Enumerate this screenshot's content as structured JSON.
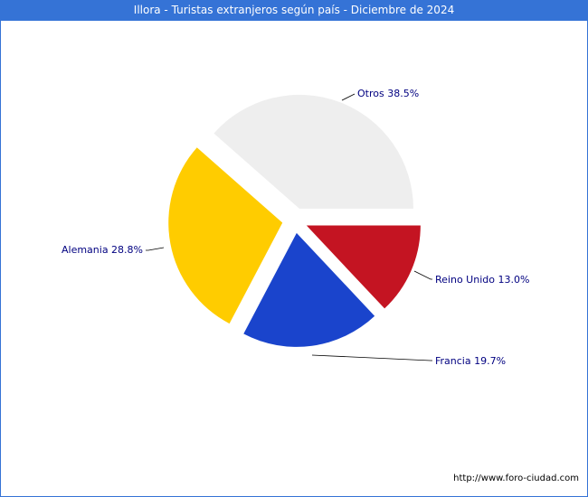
{
  "chart_data": {
    "type": "pie",
    "title": "Illora - Turistas extranjeros según país - Diciembre de 2024",
    "slices": [
      {
        "label": "Otros",
        "value": 38.5,
        "label_text": "Otros 38.5%",
        "color": "#eeeeee"
      },
      {
        "label": "Alemania",
        "value": 28.8,
        "label_text": "Alemania 28.8%",
        "color": "#ffcc00"
      },
      {
        "label": "Francia",
        "value": 19.7,
        "label_text": "Francia 19.7%",
        "color": "#1a44cc"
      },
      {
        "label": "Reino Unido",
        "value": 13.0,
        "label_text": "Reino Unido 13.0%",
        "color": "#c41422"
      }
    ],
    "exploded": true
  },
  "footer": {
    "url": "http://www.foro-ciudad.com"
  }
}
